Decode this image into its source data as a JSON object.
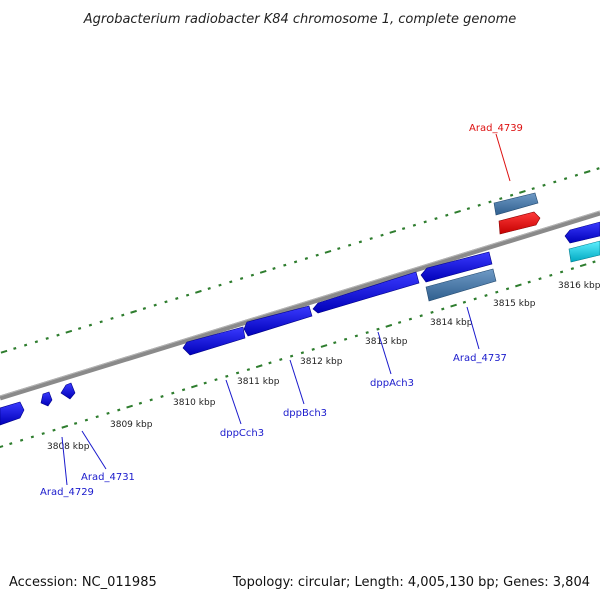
{
  "title": "Agrobacterium radiobacter K84 chromosome 1, complete genome",
  "footer": {
    "accession": "Accession: NC_011985",
    "summary": "Topology: circular; Length: 4,005,130 bp; Genes: 3,804"
  },
  "colors": {
    "backbone": "#8a8a8a",
    "tick_dash": "#2e7d2e",
    "gene_blue": "#1a1ae6",
    "gene_steel": "#4f7fae",
    "gene_red": "#ee1111",
    "gene_cyan": "#11cfe6",
    "label_blue": "#1a1acc",
    "label_red": "#dd1111"
  },
  "scale": {
    "unit": "kbp",
    "ticks": [
      {
        "kbp": 3808,
        "label": "3808 kbp"
      },
      {
        "kbp": 3809,
        "label": "3809 kbp"
      },
      {
        "kbp": 3810,
        "label": "3810 kbp"
      },
      {
        "kbp": 3811,
        "label": "3811 kbp"
      },
      {
        "kbp": 3812,
        "label": "3812 kbp"
      },
      {
        "kbp": 3813,
        "label": "3813 kbp"
      },
      {
        "kbp": 3814,
        "label": "3814 kbp"
      },
      {
        "kbp": 3815,
        "label": "3815 kbp"
      },
      {
        "kbp": 3816,
        "label": "3816 kbp"
      }
    ]
  },
  "gene_labels": [
    {
      "name": "Arad_4729",
      "color": "label_blue"
    },
    {
      "name": "Arad_4731",
      "color": "label_blue"
    },
    {
      "name": "dppCch3",
      "color": "label_blue"
    },
    {
      "name": "dppBch3",
      "color": "label_blue"
    },
    {
      "name": "dppAch3",
      "color": "label_blue"
    },
    {
      "name": "Arad_4737",
      "color": "label_blue"
    },
    {
      "name": "Arad_4739",
      "color": "label_red"
    }
  ]
}
